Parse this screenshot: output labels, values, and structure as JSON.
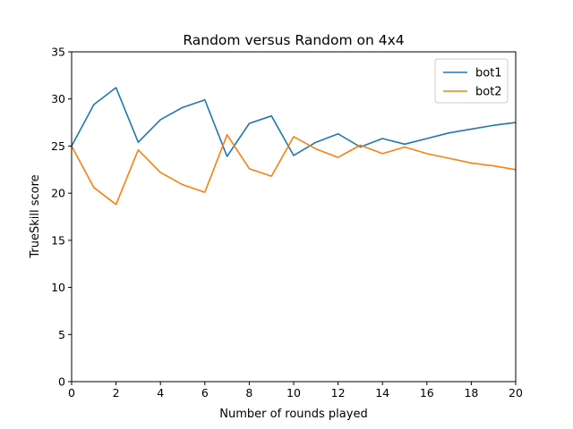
{
  "chart_data": {
    "type": "line",
    "title": "Random versus Random on 4x4",
    "xlabel": "Number of rounds played",
    "ylabel": "TrueSkill score",
    "xlim": [
      0,
      20
    ],
    "ylim": [
      0,
      35
    ],
    "xticks": [
      0,
      2,
      4,
      6,
      8,
      10,
      12,
      14,
      16,
      18,
      20
    ],
    "yticks": [
      0,
      5,
      10,
      15,
      20,
      25,
      30,
      35
    ],
    "grid": false,
    "legend_position": "top-right",
    "x": [
      0,
      1,
      2,
      3,
      4,
      5,
      6,
      7,
      8,
      9,
      10,
      11,
      12,
      13,
      14,
      15,
      16,
      17,
      18,
      19,
      20
    ],
    "series": [
      {
        "name": "bot1",
        "color": "#1f77b4",
        "values": [
          25.0,
          29.4,
          31.2,
          25.4,
          27.8,
          29.1,
          29.9,
          23.9,
          27.4,
          28.2,
          24.0,
          25.4,
          26.3,
          24.9,
          25.8,
          25.2,
          25.8,
          26.4,
          26.8,
          27.2,
          27.5
        ]
      },
      {
        "name": "bot2",
        "color": "#ff7f0e",
        "values": [
          25.0,
          20.6,
          18.8,
          24.6,
          22.2,
          20.9,
          20.1,
          26.2,
          22.6,
          21.8,
          26.0,
          24.7,
          23.8,
          25.1,
          24.2,
          24.9,
          24.2,
          23.7,
          23.2,
          22.9,
          22.5
        ]
      }
    ]
  }
}
